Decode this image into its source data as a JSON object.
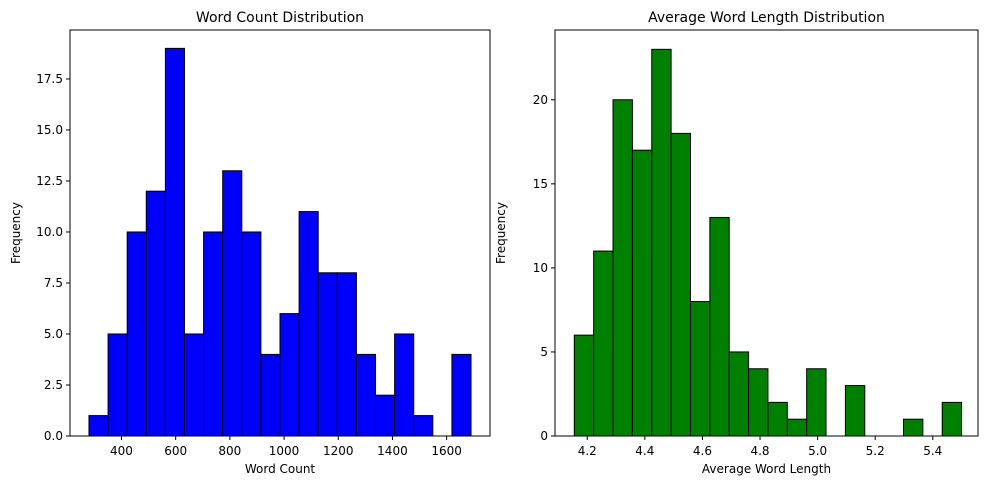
{
  "chart_data": [
    {
      "type": "bar",
      "title": "Word Count Distribution",
      "xlabel": "Word Count",
      "ylabel": "Frequency",
      "bar_color": "#0000ff",
      "edge_color": "#000000",
      "bin_start": 280,
      "bin_width": 70.5,
      "values": [
        1,
        5,
        10,
        12,
        19,
        5,
        10,
        13,
        10,
        4,
        6,
        11,
        8,
        8,
        4,
        2,
        5,
        1,
        0,
        4
      ],
      "xlim": [
        210,
        1760
      ],
      "ylim": [
        0,
        19.9
      ],
      "xticks": [
        400,
        600,
        800,
        1000,
        1200,
        1400,
        1600
      ],
      "xtick_labels": [
        "400",
        "600",
        "800",
        "1000",
        "1200",
        "1400",
        "1600"
      ],
      "yticks": [
        0,
        2.5,
        5,
        7.5,
        10,
        12.5,
        15,
        17.5
      ],
      "ytick_labels": [
        "0.0",
        "2.5",
        "5.0",
        "7.5",
        "10.0",
        "12.5",
        "15.0",
        "17.5"
      ]
    },
    {
      "type": "bar",
      "title": "Average Word Length Distribution",
      "xlabel": "Average Word Length",
      "ylabel": "Frequency",
      "bar_color": "#008000",
      "edge_color": "#000000",
      "bin_start": 4.155,
      "bin_width": 0.06725,
      "values": [
        6,
        11,
        20,
        17,
        23,
        18,
        8,
        13,
        5,
        4,
        2,
        1,
        4,
        0,
        3,
        0,
        0,
        1,
        0,
        2
      ],
      "xlim": [
        4.088,
        5.557
      ],
      "ylim": [
        0,
        24.15
      ],
      "xticks": [
        4.2,
        4.4,
        4.6,
        4.8,
        5.0,
        5.2,
        5.4
      ],
      "xtick_labels": [
        "4.2",
        "4.4",
        "4.6",
        "4.8",
        "5.0",
        "5.2",
        "5.4"
      ],
      "yticks": [
        0,
        5,
        10,
        15,
        20
      ],
      "ytick_labels": [
        "0",
        "5",
        "10",
        "15",
        "20"
      ]
    }
  ]
}
